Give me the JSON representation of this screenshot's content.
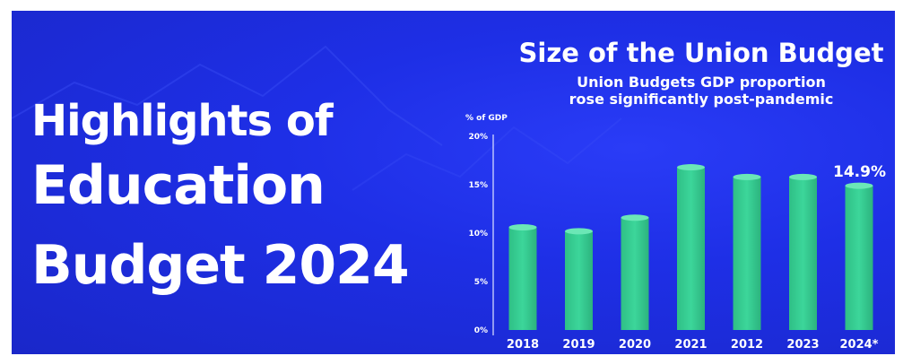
{
  "headline": {
    "line1": "Highlights of",
    "line2": "Education",
    "line3": "Budget 2024"
  },
  "colors": {
    "background": "#1e2fe6",
    "bar": "#3cd69a",
    "text": "#ffffff"
  },
  "chart_data": {
    "type": "bar",
    "title": "Size of the Union Budget",
    "subtitle": [
      "Union Budgets GDP proportion",
      "rose significantly post-pandemic"
    ],
    "ylabel": "% of GDP",
    "xlabel": "",
    "ylim": [
      0,
      20
    ],
    "yticks": [
      0,
      5,
      10,
      15,
      20
    ],
    "ytick_labels": [
      "0%",
      "5%",
      "10%",
      "15%",
      "20%"
    ],
    "categories": [
      "2018",
      "2019",
      "2020",
      "2021",
      "2012",
      "2023",
      "2024*"
    ],
    "values": [
      10.6,
      10.2,
      11.6,
      16.8,
      15.8,
      15.8,
      14.9
    ],
    "data_labels": [
      {
        "index": 6,
        "text": "14.9%"
      }
    ],
    "grid": false,
    "legend": "none"
  }
}
